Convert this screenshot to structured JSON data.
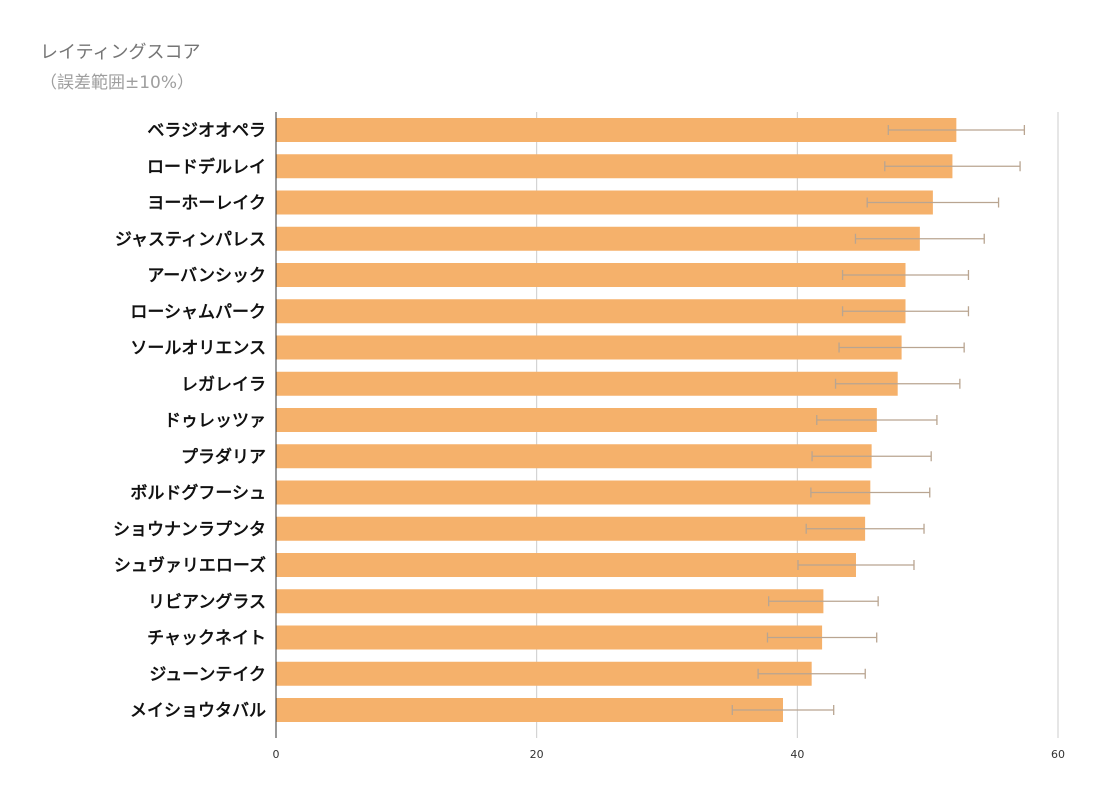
{
  "title": "レイティングスコア",
  "subtitle": "（誤差範囲±10%）",
  "colors": {
    "bar": "#f5b16b",
    "error_bar": "#b9a591",
    "grid": "#cccccc",
    "axis": "#333333"
  },
  "chart_data": {
    "type": "bar",
    "orientation": "horizontal",
    "title": "レイティングスコア",
    "subtitle": "（誤差範囲±10%）",
    "categories": [
      "ベラジオオペラ",
      "ロードデルレイ",
      "ヨーホーレイク",
      "ジャスティンパレス",
      "アーバンシック",
      "ローシャムパーク",
      "ソールオリエンス",
      "レガレイラ",
      "ドゥレッツァ",
      "プラダリア",
      "ボルドグフーシュ",
      "ショウナンラプンタ",
      "シュヴァリエローズ",
      "リビアングラス",
      "チャックネイト",
      "ジューンテイク",
      "メイショウタバル"
    ],
    "values": [
      52.2,
      51.9,
      50.4,
      49.4,
      48.3,
      48.3,
      48.0,
      47.7,
      46.1,
      45.7,
      45.6,
      45.2,
      44.5,
      42.0,
      41.9,
      41.1,
      38.9
    ],
    "error_percent": 10,
    "xlim": [
      0,
      60
    ],
    "xticks": [
      0,
      20,
      40,
      60
    ],
    "grid": true
  }
}
